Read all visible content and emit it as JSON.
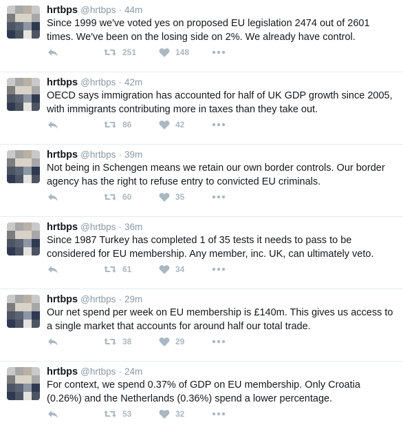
{
  "avatar_palette": [
    "#c9c9c9",
    "#a7a7a7",
    "#b9b1a5",
    "#7c7c7c",
    "#4d5563",
    "#2f3a52",
    "#8e96a3",
    "#d8d2c8",
    "#5b6475",
    "#e5e3df"
  ],
  "icons": {
    "reply": "reply-icon",
    "retweet": "retweet-icon",
    "like": "heart-icon",
    "more": "more-dots-icon"
  },
  "colors": {
    "action_gray": "#aab8c2",
    "meta_gray": "#8899a6",
    "divider": "#e6ecf0"
  },
  "tweets": [
    {
      "name": "hrtbps",
      "handle": "@hrtbps",
      "sep": "·",
      "time": "44m",
      "text": "Since 1999 we've voted yes on proposed EU legislation 2474 out of 2601 times. We've been on the losing side on 2%. We already have control.",
      "retweets": "251",
      "likes": "148"
    },
    {
      "name": "hrtbps",
      "handle": "@hrtbps",
      "sep": "·",
      "time": "42m",
      "text": "OECD says immigration has accounted for half of UK GDP growth since 2005, with immigrants contributing more in taxes than they take out.",
      "retweets": "86",
      "likes": "42"
    },
    {
      "name": "hrtbps",
      "handle": "@hrtbps",
      "sep": "·",
      "time": "39m",
      "text": "Not being in Schengen means we retain our own border controls. Our border agency has the right to refuse entry to convicted EU criminals.",
      "retweets": "60",
      "likes": "35"
    },
    {
      "name": "hrtbps",
      "handle": "@hrtbps",
      "sep": "·",
      "time": "36m",
      "text": "Since 1987 Turkey has completed 1 of 35 tests it needs to pass to be considered for EU membership. Any member, inc. UK, can ultimately veto.",
      "retweets": "61",
      "likes": "34"
    },
    {
      "name": "hrtbps",
      "handle": "@hrtbps",
      "sep": "·",
      "time": "29m",
      "text": "Our net spend per week on EU membership is £140m. This gives us access to a single market that accounts for around half our total trade.",
      "retweets": "38",
      "likes": "29"
    },
    {
      "name": "hrtbps",
      "handle": "@hrtbps",
      "sep": "·",
      "time": "24m",
      "text": "For context, we spend 0.37% of GDP on EU membership. Only Croatia (0.26%) and the Netherlands (0.36%) spend a lower percentage.",
      "retweets": "53",
      "likes": "32"
    }
  ]
}
